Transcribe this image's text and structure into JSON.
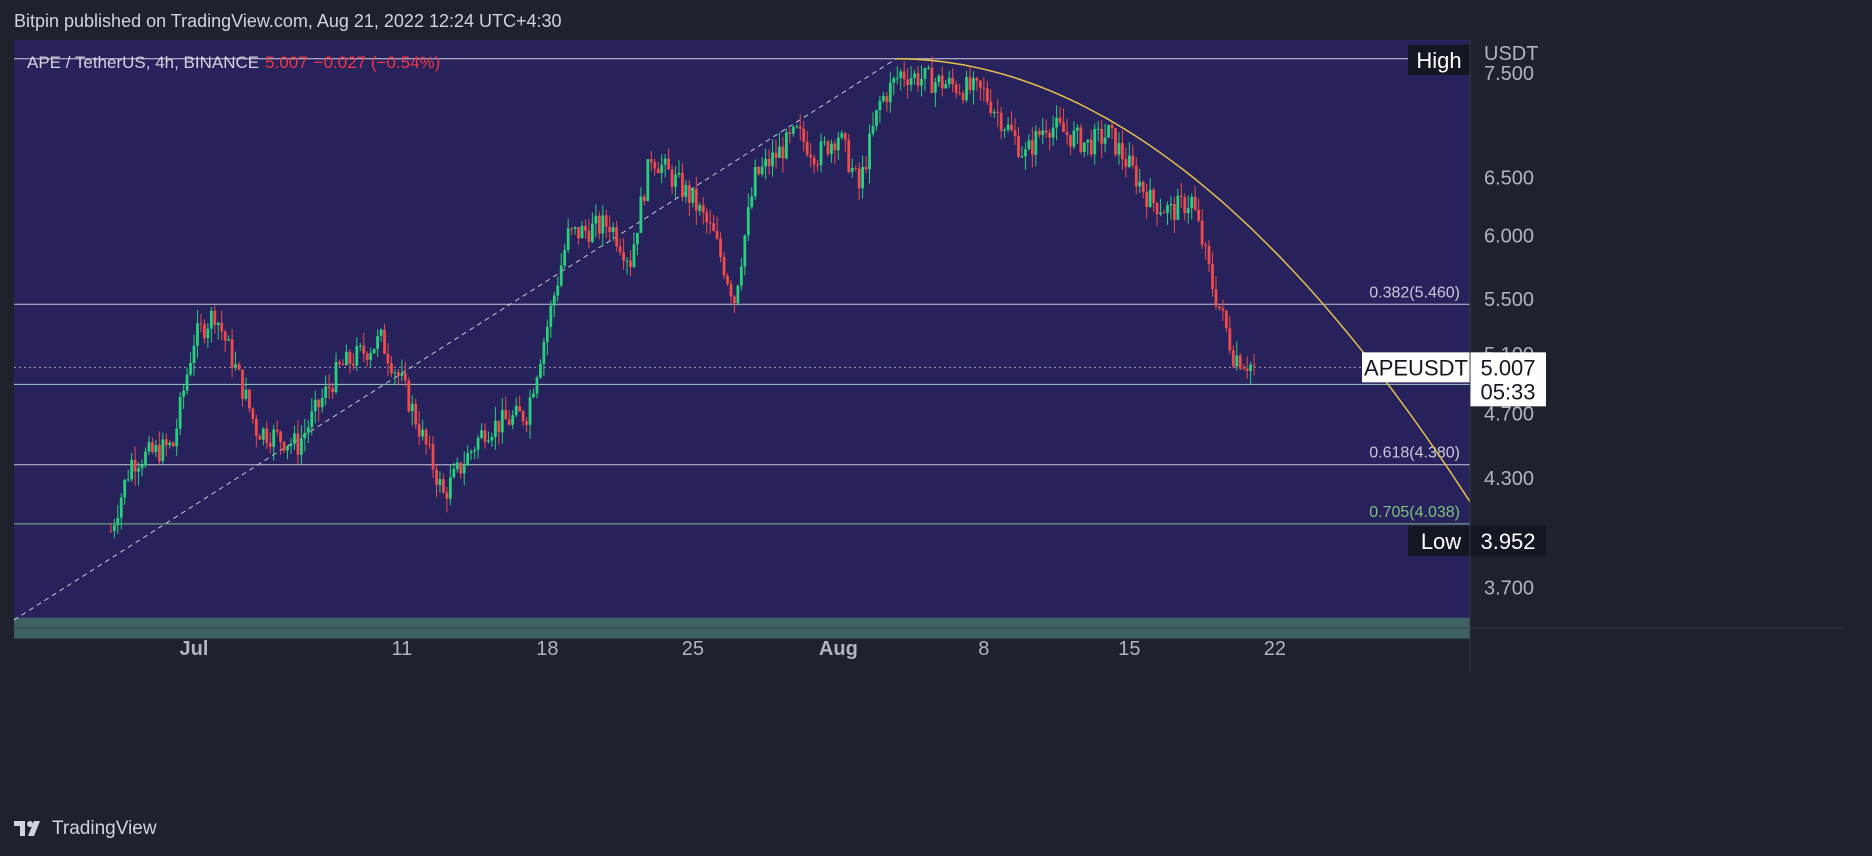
{
  "header": {
    "caption": "Bitpin published on TradingView.com, Aug 21, 2022 12:24 UTC+4:30"
  },
  "symbol_line": {
    "pair": "APE / TetherUS, 4h, BINANCE",
    "last": "5.007",
    "change": "−0.027 (−0.54%)"
  },
  "footer": {
    "brand": "TradingView"
  },
  "colors": {
    "plot_bg": "#27215c",
    "page_bg": "#1e222d",
    "up": "#26d07c",
    "down": "#ef4b4b",
    "curve": "#e5c14e",
    "zone": "#3e6163",
    "fib": "#c9c9d6",
    "fib705": "#7fbf7f"
  },
  "chart_data": {
    "type": "candlestick",
    "title": "APE / TetherUS, 4h, BINANCE",
    "ylabel": "USDT",
    "y_scale": "log",
    "ylim": [
      3.5,
      7.85
    ],
    "x_ticks": [
      "Jul",
      "11",
      "18",
      "25",
      "Aug",
      "8",
      "15",
      "22"
    ],
    "y_ticks": [
      "7.500",
      "6.500",
      "6.000",
      "5.500",
      "5.100",
      "4.700",
      "4.300",
      "3.700"
    ],
    "series": [
      {
        "name": "APEUSDT",
        "approx_path": [
          {
            "date": "Jun 27",
            "price": 4.0
          },
          {
            "date": "Jun 28",
            "price": 4.4
          },
          {
            "date": "Jun 30",
            "price": 4.5
          },
          {
            "date": "Jul 1",
            "price": 5.2
          },
          {
            "date": "Jul 2",
            "price": 5.4
          },
          {
            "date": "Jul 4",
            "price": 4.6
          },
          {
            "date": "Jul 6",
            "price": 4.5
          },
          {
            "date": "Jul 8",
            "price": 5.0
          },
          {
            "date": "Jul 10",
            "price": 5.2
          },
          {
            "date": "Jul 11",
            "price": 4.9
          },
          {
            "date": "Jul 13",
            "price": 4.2
          },
          {
            "date": "Jul 15",
            "price": 4.6
          },
          {
            "date": "Jul 17",
            "price": 4.7
          },
          {
            "date": "Jul 18",
            "price": 5.3
          },
          {
            "date": "Jul 19",
            "price": 6.0
          },
          {
            "date": "Jul 21",
            "price": 6.1
          },
          {
            "date": "Jul 22",
            "price": 5.8
          },
          {
            "date": "Jul 23",
            "price": 6.7
          },
          {
            "date": "Jul 25",
            "price": 6.3
          },
          {
            "date": "Jul 26",
            "price": 6.0
          },
          {
            "date": "Jul 27",
            "price": 5.5
          },
          {
            "date": "Jul 28",
            "price": 6.5
          },
          {
            "date": "Jul 30",
            "price": 6.9
          },
          {
            "date": "Jul 31",
            "price": 6.7
          },
          {
            "date": "Aug 1",
            "price": 6.9
          },
          {
            "date": "Aug 2",
            "price": 6.4
          },
          {
            "date": "Aug 3",
            "price": 7.2
          },
          {
            "date": "Aug 4",
            "price": 7.5
          },
          {
            "date": "Aug 6",
            "price": 7.4
          },
          {
            "date": "Aug 8",
            "price": 7.3
          },
          {
            "date": "Aug 9",
            "price": 7.0
          },
          {
            "date": "Aug 10",
            "price": 6.7
          },
          {
            "date": "Aug 11",
            "price": 7.0
          },
          {
            "date": "Aug 13",
            "price": 6.8
          },
          {
            "date": "Aug 14",
            "price": 6.9
          },
          {
            "date": "Aug 15",
            "price": 6.6
          },
          {
            "date": "Aug 16",
            "price": 6.3
          },
          {
            "date": "Aug 17",
            "price": 6.2
          },
          {
            "date": "Aug 18",
            "price": 6.3
          },
          {
            "date": "Aug 19",
            "price": 5.6
          },
          {
            "date": "Aug 20",
            "price": 5.1
          },
          {
            "date": "Aug 21",
            "price": 5.007
          }
        ]
      }
    ],
    "levels": [
      {
        "label": "0.382(5.460)",
        "value": 5.46
      },
      {
        "label": "0.618(4.380)",
        "value": 4.38
      },
      {
        "label": "0.705(4.038)",
        "value": 4.038
      }
    ],
    "high": {
      "label": "High",
      "value": 7.65
    },
    "current": {
      "label": "APEUSDT",
      "value": "5.007",
      "countdown": "05:33"
    },
    "low": {
      "label": "Low",
      "value": "3.952"
    },
    "support_zone": [
      3.45,
      3.55
    ]
  }
}
